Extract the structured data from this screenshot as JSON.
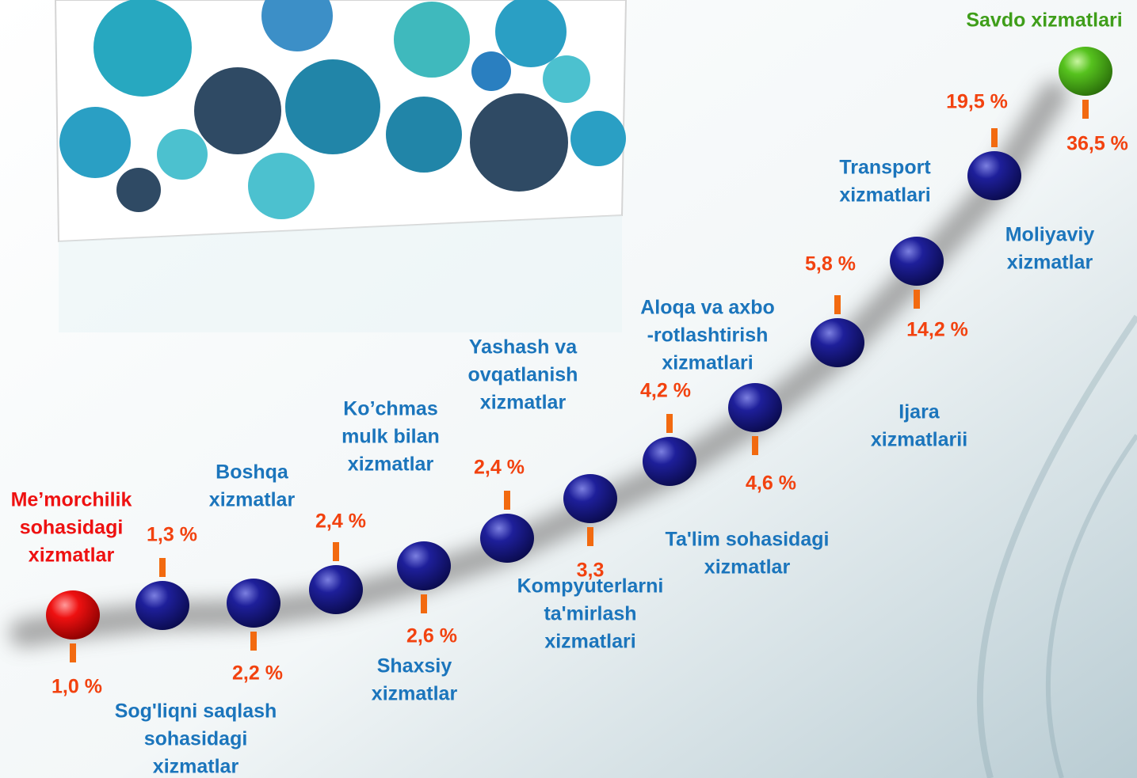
{
  "items": [
    {
      "label": [
        "Me’morchilik",
        "sohasidagi",
        "xizmatlar"
      ],
      "value": "1,0 %"
    },
    {
      "label": [
        "Sog'liqni saqlash",
        "sohasidagi",
        "xizmatlar"
      ],
      "value": "1,3 %"
    },
    {
      "label": [
        "Boshqa",
        "xizmatlar"
      ],
      "value": "2,2 %"
    },
    {
      "label": [
        "Shaxsiy",
        "xizmatlar"
      ],
      "value": "2,4 %"
    },
    {
      "label": [
        "Ko’chmas",
        "mulk bilan",
        "xizmatlar"
      ],
      "value": "2,6 %"
    },
    {
      "label": [
        "Yashash va",
        "ovqatlanish",
        "xizmatlar"
      ],
      "value": "2,4 %"
    },
    {
      "label": [
        "Kompyuterlarni",
        "ta'mirlash",
        "xizmatlari"
      ],
      "value": "3,3"
    },
    {
      "label": [
        "Aloqa va axbo",
        "-rotlashtirish",
        "xizmatlari"
      ],
      "value": "4,2 %"
    },
    {
      "label": [
        "Ta'lim sohasidagi",
        "xizmatlar"
      ],
      "value": "4,6 %"
    },
    {
      "label": [
        "Ijara",
        "xizmatlarii"
      ],
      "value": "5,8 %"
    },
    {
      "label": [
        "Transport",
        "xizmatlari"
      ],
      "value": "14,2 %"
    },
    {
      "label": [
        "Moliyaviy",
        "xizmatlar"
      ],
      "value": "19,5 %"
    },
    {
      "label": [
        "Savdo xizmatlari"
      ],
      "value": "36,5 %"
    }
  ]
}
